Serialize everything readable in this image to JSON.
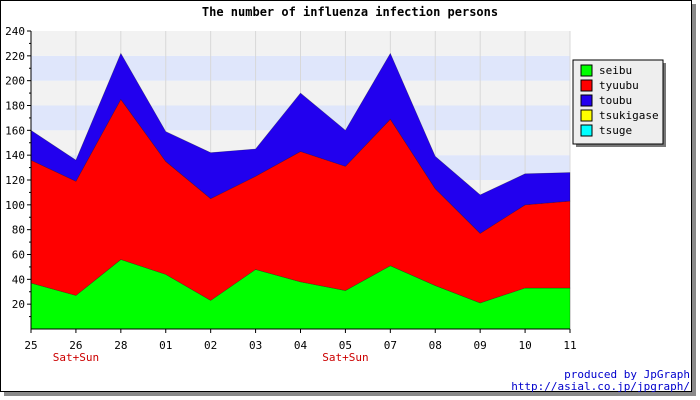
{
  "chart_data": {
    "type": "area",
    "stacked": true,
    "title": "The number of influenza infection persons",
    "categories": [
      "25",
      "26",
      "28",
      "01",
      "02",
      "03",
      "04",
      "05",
      "07",
      "08",
      "09",
      "10",
      "11"
    ],
    "weekend_labels": [
      {
        "category": "26",
        "text": "Sat+Sun"
      },
      {
        "category": "05",
        "text": "Sat+Sun"
      }
    ],
    "ylim": [
      0,
      240
    ],
    "yticks": [
      20,
      40,
      60,
      80,
      100,
      120,
      140,
      160,
      180,
      200,
      220,
      240
    ],
    "grid": "horizontal bands",
    "legend_position": "right",
    "series": [
      {
        "name": "seibu",
        "color": "#00ff00",
        "values": [
          37,
          27,
          56,
          44,
          23,
          48,
          38,
          31,
          51,
          35,
          21,
          33,
          33
        ]
      },
      {
        "name": "tyuubu",
        "color": "#ff0000",
        "values": [
          99,
          92,
          129,
          91,
          82,
          75,
          105,
          100,
          118,
          78,
          56,
          67,
          70
        ]
      },
      {
        "name": "toubu",
        "color": "#2200ee",
        "values": [
          24,
          17,
          37,
          24,
          37,
          22,
          47,
          29,
          53,
          26,
          31,
          25,
          23
        ]
      },
      {
        "name": "tsukigase",
        "color": "#ffff00",
        "values": [
          0,
          0,
          0,
          0,
          0,
          0,
          0,
          0,
          0,
          0,
          0,
          0,
          0
        ]
      },
      {
        "name": "tsuge",
        "color": "#00ffff",
        "values": [
          0,
          0,
          0,
          0,
          0,
          0,
          0,
          0,
          0,
          0,
          0,
          0,
          0
        ]
      }
    ],
    "credit_lines": [
      "produced by JpGraph",
      "http://asial.co.jp/jpgraph/"
    ]
  }
}
